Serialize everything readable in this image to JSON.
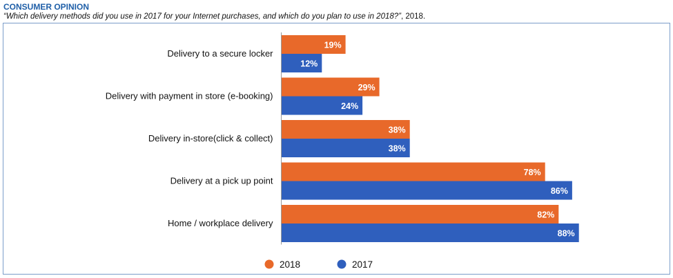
{
  "header": {
    "title": "CONSUMER OPINION",
    "question": "“Which delivery methods did you use in 2017 for your Internet purchases, and which do you plan to use in 2018?”",
    "suffix": ", 2018."
  },
  "chart_data": {
    "type": "bar",
    "orientation": "horizontal",
    "categories": [
      "Delivery to a secure locker",
      "Delivery with payment in store (e-booking)",
      "Delivery in-store(click & collect)",
      "Delivery at a pick up point",
      "Home / workplace delivery"
    ],
    "series": [
      {
        "name": "2018",
        "values": [
          19,
          29,
          38,
          78,
          82
        ],
        "labels": [
          "19%",
          "29%",
          "38%",
          "78%",
          "82%"
        ],
        "color": "#e8692a"
      },
      {
        "name": "2017",
        "values": [
          12,
          24,
          38,
          86,
          88
        ],
        "labels": [
          "12%",
          "24%",
          "38%",
          "86%",
          "88%"
        ],
        "color": "#2f5fbd"
      }
    ],
    "xlim": [
      0,
      100
    ],
    "grid": false,
    "legend": "bottom"
  }
}
